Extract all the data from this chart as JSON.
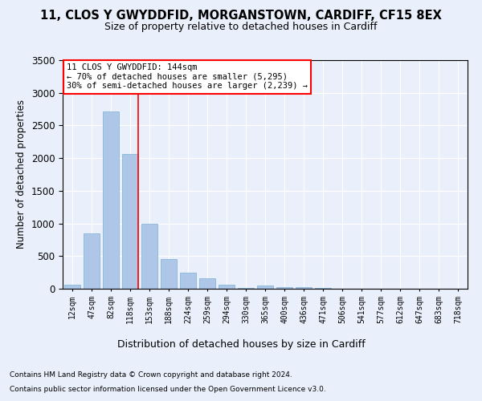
{
  "title": "11, CLOS Y GWYDDFID, MORGANSTOWN, CARDIFF, CF15 8EX",
  "subtitle": "Size of property relative to detached houses in Cardiff",
  "xlabel": "Distribution of detached houses by size in Cardiff",
  "ylabel": "Number of detached properties",
  "categories": [
    "12sqm",
    "47sqm",
    "82sqm",
    "118sqm",
    "153sqm",
    "188sqm",
    "224sqm",
    "259sqm",
    "294sqm",
    "330sqm",
    "365sqm",
    "400sqm",
    "436sqm",
    "471sqm",
    "506sqm",
    "541sqm",
    "577sqm",
    "612sqm",
    "647sqm",
    "683sqm",
    "718sqm"
  ],
  "values": [
    60,
    850,
    2720,
    2060,
    1000,
    450,
    240,
    155,
    65,
    10,
    50,
    30,
    20,
    10,
    5,
    5,
    5,
    5,
    5,
    5,
    5
  ],
  "bar_color": "#aec6e8",
  "bar_edge_color": "#7ab0d4",
  "vline_color": "red",
  "vline_x": 3.4,
  "annotation_title": "11 CLOS Y GWYDDFID: 144sqm",
  "annotation_line1": "← 70% of detached houses are smaller (5,295)",
  "annotation_line2": "30% of semi-detached houses are larger (2,239) →",
  "annotation_box_color": "white",
  "annotation_box_edge": "red",
  "ylim": [
    0,
    3500
  ],
  "yticks": [
    0,
    500,
    1000,
    1500,
    2000,
    2500,
    3000,
    3500
  ],
  "footnote1": "Contains HM Land Registry data © Crown copyright and database right 2024.",
  "footnote2": "Contains public sector information licensed under the Open Government Licence v3.0.",
  "bg_color": "#eaf0fb",
  "plot_bg_color": "#eaf0fb"
}
